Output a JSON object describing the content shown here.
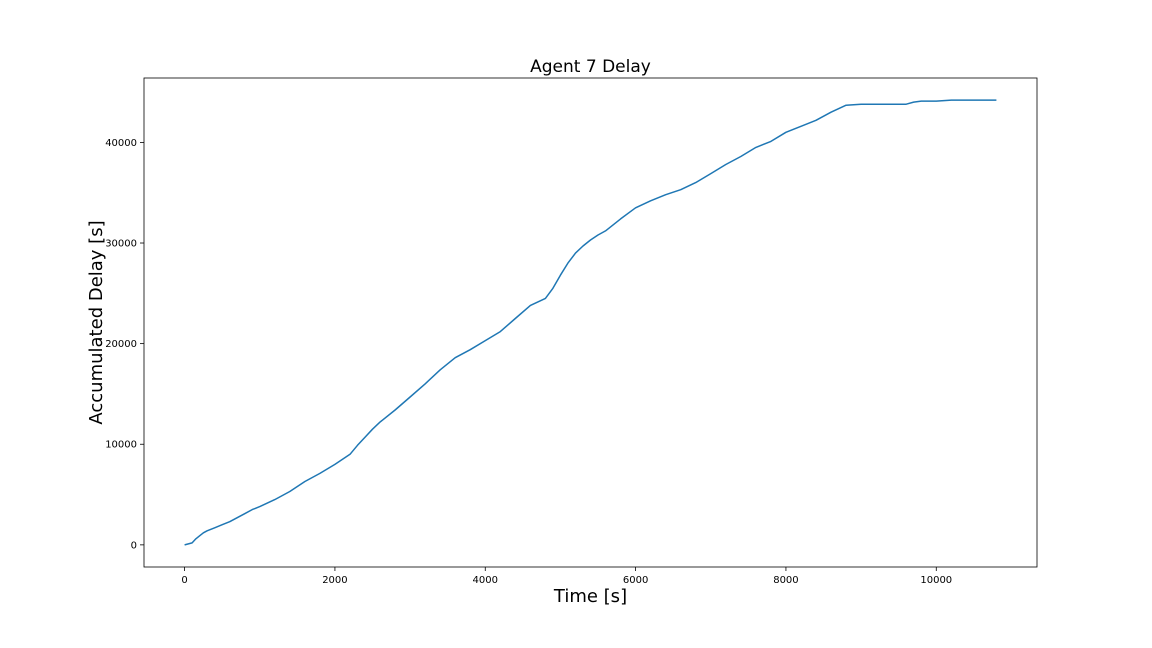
{
  "chart_data": {
    "type": "line",
    "title": "Agent 7 Delay",
    "xlabel": "Time [s]",
    "ylabel": "Accumulated Delay [s]",
    "xlim": [
      -540,
      11340
    ],
    "ylim": [
      -2200,
      46400
    ],
    "xticks": [
      0,
      2000,
      4000,
      6000,
      8000,
      10000
    ],
    "yticks": [
      0,
      10000,
      20000,
      30000,
      40000
    ],
    "grid": false,
    "legend": "none",
    "colors": {
      "line": "#1f77b4"
    },
    "series": [
      {
        "x": [
          0,
          100,
          150,
          200,
          250,
          300,
          400,
          500,
          600,
          700,
          800,
          900,
          1000,
          1200,
          1400,
          1600,
          1800,
          2000,
          2200,
          2300,
          2400,
          2500,
          2600,
          2800,
          3000,
          3200,
          3400,
          3600,
          3800,
          4000,
          4200,
          4400,
          4600,
          4800,
          4900,
          5000,
          5100,
          5200,
          5300,
          5400,
          5500,
          5600,
          5800,
          6000,
          6200,
          6400,
          6600,
          6800,
          7000,
          7200,
          7400,
          7600,
          7800,
          8000,
          8200,
          8400,
          8600,
          8800,
          9000,
          9100,
          9200,
          9600,
          9700,
          9800,
          10000,
          10200,
          10400,
          10800
        ],
        "y": [
          0,
          200,
          600,
          900,
          1200,
          1400,
          1700,
          2000,
          2300,
          2700,
          3100,
          3500,
          3800,
          4500,
          5300,
          6300,
          7100,
          8000,
          9000,
          9900,
          10700,
          11500,
          12200,
          13400,
          14700,
          16000,
          17400,
          18600,
          19400,
          20300,
          21200,
          22500,
          23800,
          24500,
          25500,
          26800,
          28000,
          29000,
          29700,
          30300,
          30800,
          31200,
          32400,
          33500,
          34200,
          34800,
          35300,
          36000,
          36900,
          37800,
          38600,
          39500,
          40100,
          41000,
          41600,
          42200,
          43000,
          43700,
          43800,
          43800,
          43800,
          43800,
          44000,
          44100,
          44100,
          44200,
          44200,
          44200
        ]
      }
    ]
  }
}
